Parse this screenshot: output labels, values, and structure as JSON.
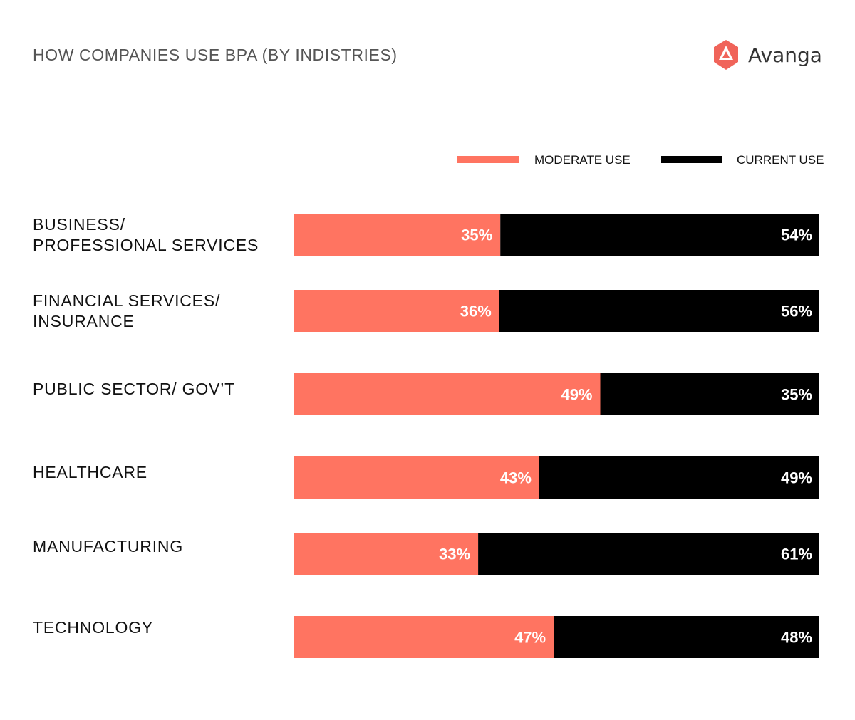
{
  "header": {
    "title": "HOW COMPANIES USE BPA (BY INDISTRIES)",
    "brand": "Avanga"
  },
  "colors": {
    "moderate": "#FF7461",
    "current": "#000000",
    "title": "#555555",
    "text": "#111111",
    "logo_accent": "#F0645A",
    "logo_text": "#333333"
  },
  "chart_data": {
    "type": "bar",
    "orientation": "horizontal",
    "stacked": true,
    "normalized": true,
    "title": "HOW COMPANIES USE BPA (BY INDISTRIES)",
    "legend_position": "top-right",
    "grid": false,
    "categories": [
      "BUSINESS/ PROFESSIONAL SERVICES",
      "FINANCIAL SERVICES/ INSURANCE",
      "PUBLIC SECTOR/ GOV’T",
      "HEALTHCARE",
      "MANUFACTURING",
      "TECHNOLOGY"
    ],
    "category_lines": [
      [
        "BUSINESS/",
        "PROFESSIONAL SERVICES"
      ],
      [
        "FINANCIAL SERVICES/",
        "INSURANCE"
      ],
      [
        "PUBLIC SECTOR/ GOV’T"
      ],
      [
        "HEALTHCARE"
      ],
      [
        "MANUFACTURING"
      ],
      [
        "TECHNOLOGY"
      ]
    ],
    "series": [
      {
        "name": "MODERATE USE",
        "values": [
          35,
          36,
          49,
          43,
          33,
          47
        ],
        "labels": [
          "35%",
          "36%",
          "49%",
          "43%",
          "33%",
          "47%"
        ]
      },
      {
        "name": "CURRENT USE",
        "values": [
          54,
          56,
          35,
          49,
          61,
          48
        ],
        "labels": [
          "54%",
          "56%",
          "35%",
          "49%",
          "61%",
          "48%"
        ]
      }
    ]
  }
}
